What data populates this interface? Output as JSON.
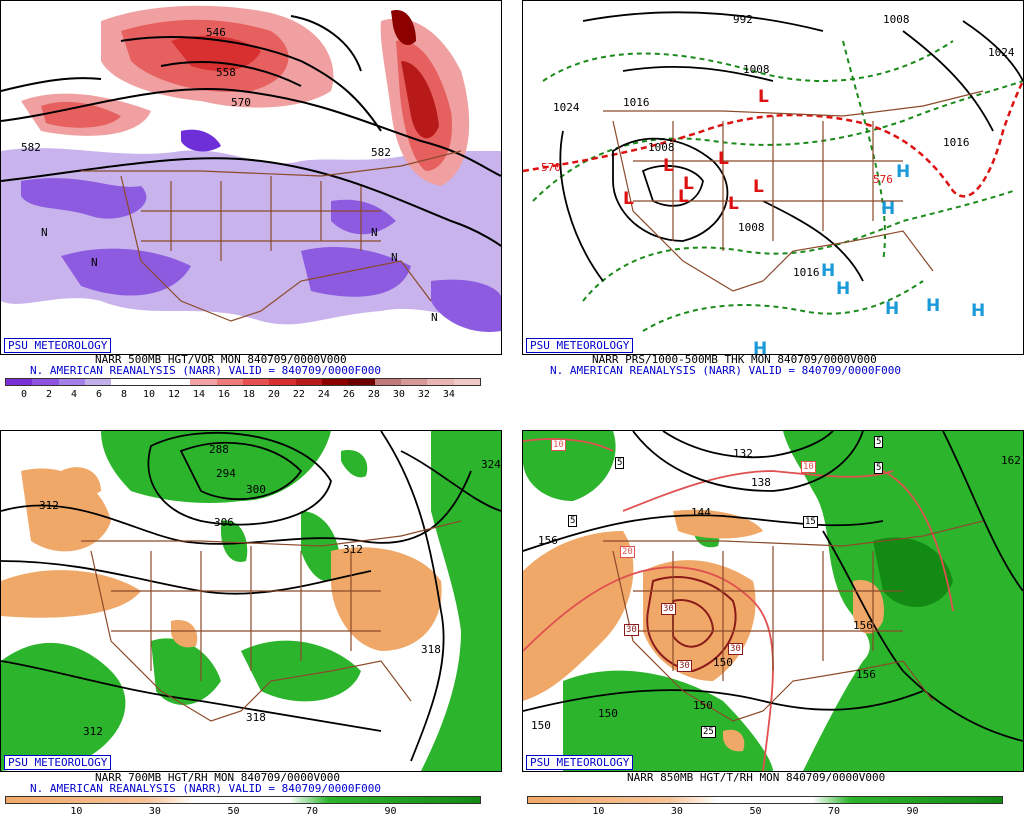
{
  "panels": {
    "top_left": {
      "badge": "PSU METEOROLOGY",
      "caption_line1": "NARR 500MB HGT/VOR MON 840709/0000V000",
      "caption_line2": "N. AMERICAN REANALYSIS (NARR) VALID = 840709/0000F000",
      "colorbar_ticks": [
        "0",
        "2",
        "4",
        "6",
        "8",
        "10",
        "12",
        "14",
        "16",
        "18",
        "20",
        "22",
        "24",
        "26",
        "28",
        "30",
        "32",
        "34"
      ],
      "colorbar_colors": [
        "#7b2fd6",
        "#8e52e0",
        "#a47fe6",
        "#c2aee9",
        "#ffffff",
        "#ffffff",
        "#ffffff",
        "#f2a2a2",
        "#ee7a7a",
        "#e65050",
        "#d83030",
        "#b81a1a",
        "#8c0000",
        "#6e0000",
        "#c07a7a",
        "#d89898",
        "#e8b4b4",
        "#f0c8c8"
      ],
      "contour_labels": [
        "546",
        "558",
        "570",
        "582",
        "582",
        "N",
        "N",
        "N",
        "N",
        "N"
      ]
    },
    "top_right": {
      "badge": "PSU METEOROLOGY",
      "caption_line1": "NARR PRS/1000-500MB THK MON 840709/0000V000",
      "caption_line2": "N. AMERICAN REANALYSIS (NARR) VALID = 840709/0000F000",
      "contour_labels": [
        "992",
        "1008",
        "1008",
        "1024",
        "1024",
        "1016",
        "1008",
        "1008",
        "1016",
        "1016",
        "570",
        "576"
      ],
      "lows": [
        "L",
        "L",
        "L",
        "L",
        "L",
        "L",
        "L",
        "L"
      ],
      "highs": [
        "H",
        "H",
        "H",
        "H",
        "H",
        "H",
        "H",
        "H"
      ]
    },
    "bottom_left": {
      "badge": "PSU METEOROLOGY",
      "caption_line1": "NARR 700MB HGT/RH MON 840709/0000V000",
      "caption_line2": "N. AMERICAN REANALYSIS (NARR) VALID = 840709/0000F000",
      "colorbar_ticks": [
        "10",
        "30",
        "50",
        "70",
        "90"
      ],
      "contour_labels": [
        "288",
        "294",
        "300",
        "306",
        "312",
        "312",
        "318",
        "318",
        "324",
        "312"
      ]
    },
    "bottom_right": {
      "badge": "PSU METEOROLOGY",
      "caption_line1": "NARR 850MB HGT/T/RH MON 840709/0000V000",
      "colorbar_ticks": [
        "10",
        "30",
        "50",
        "70",
        "90"
      ],
      "contour_labels": [
        "132",
        "138",
        "144",
        "156",
        "150",
        "150",
        "156",
        "156",
        "150",
        "162",
        "150"
      ],
      "temp_boxes": [
        "10",
        "10",
        "5",
        "5",
        "5",
        "5",
        "15",
        "20",
        "30",
        "30",
        "30",
        "30",
        "25"
      ]
    }
  }
}
